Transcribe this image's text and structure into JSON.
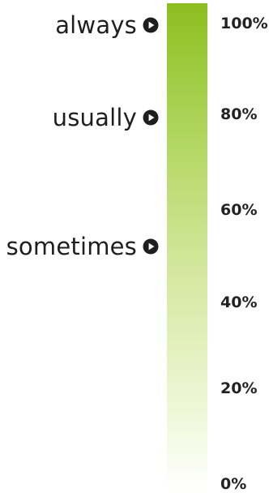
{
  "colors": {
    "bar_top": "#8bbf1f",
    "bar_bottom": "#ffffff",
    "text": "#1e1e1e"
  },
  "terms": [
    {
      "label": "always",
      "level_percent": 100
    },
    {
      "label": "usually",
      "level_percent": 80
    },
    {
      "label": "sometimes",
      "level_percent": 50
    }
  ],
  "scale": [
    {
      "label": "100%",
      "value": 100
    },
    {
      "label": "80%",
      "value": 80
    },
    {
      "label": "60%",
      "value": 60
    },
    {
      "label": "40%",
      "value": 40
    },
    {
      "label": "20%",
      "value": 20
    },
    {
      "label": "0%",
      "value": 0
    }
  ],
  "icons": {
    "term_marker": "play-circle-icon"
  }
}
